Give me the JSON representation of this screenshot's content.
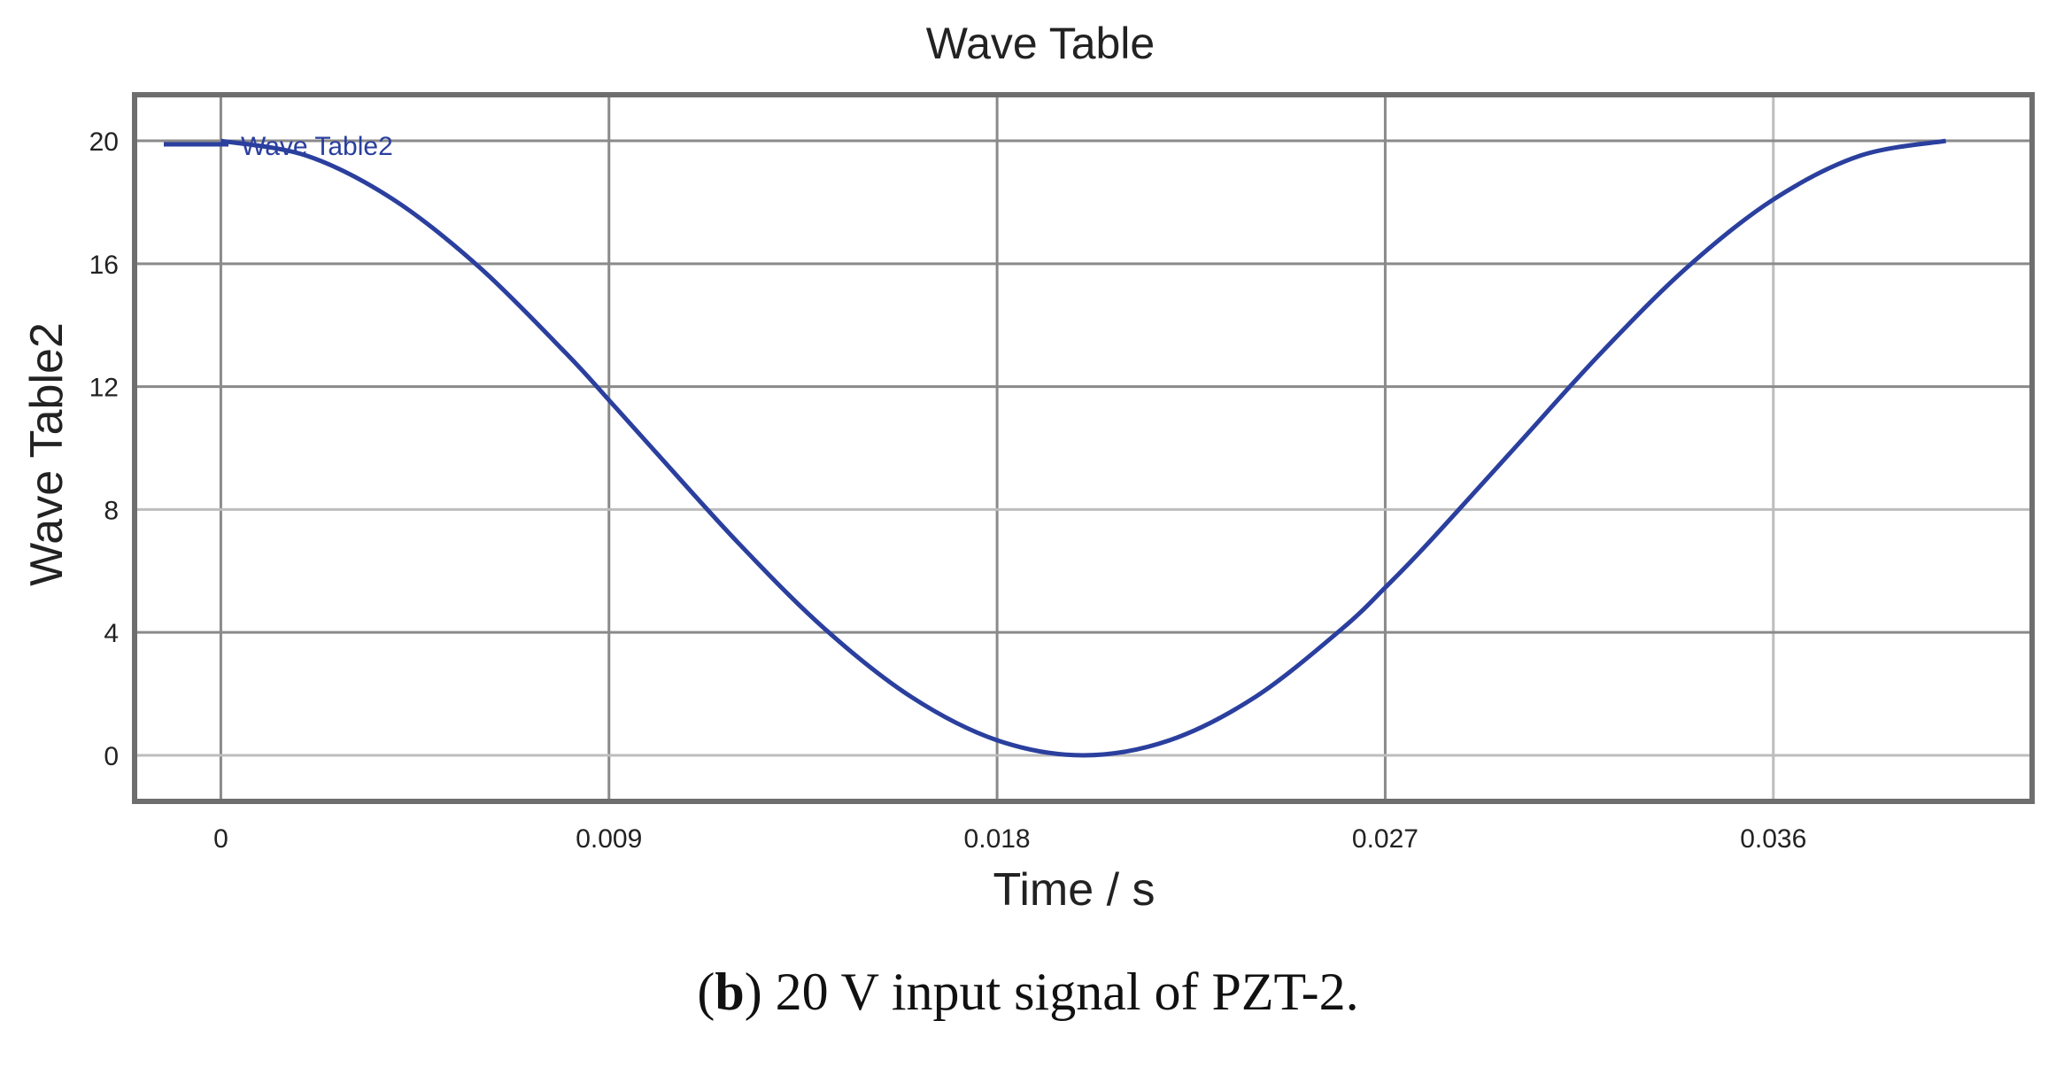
{
  "chart_data": {
    "type": "line",
    "title": "Wave Table",
    "xlabel": "Time / s",
    "ylabel": "Wave Table2",
    "xlim": [
      -0.002,
      0.042
    ],
    "ylim": [
      -1.5,
      21.5
    ],
    "x_ticks": [
      "0",
      "0.009",
      "0.018",
      "0.027",
      "0.036"
    ],
    "x_tick_values": [
      0,
      0.009,
      0.018,
      0.027,
      0.036
    ],
    "y_ticks": [
      "0",
      "4",
      "8",
      "12",
      "16",
      "20"
    ],
    "y_tick_values": [
      0,
      4,
      8,
      12,
      16,
      20
    ],
    "grid": true,
    "legend": {
      "position": "top-left",
      "entries": [
        "Wave Table2"
      ]
    },
    "series": [
      {
        "name": "Wave Table2",
        "color": "#2a3f9e",
        "x": [
          0,
          0.002,
          0.004,
          0.006,
          0.008,
          0.009,
          0.01,
          0.012,
          0.014,
          0.016,
          0.018,
          0.02,
          0.022,
          0.024,
          0.026,
          0.027,
          0.028,
          0.03,
          0.032,
          0.034,
          0.036,
          0.038,
          0.04
        ],
        "values": [
          20.0,
          19.51,
          18.09,
          15.88,
          13.09,
          11.56,
          10.0,
          6.91,
          4.12,
          1.91,
          0.49,
          0.0,
          0.49,
          1.91,
          4.12,
          5.46,
          6.91,
          10.0,
          13.09,
          15.88,
          18.09,
          19.51,
          20.0
        ]
      }
    ]
  },
  "caption": {
    "label": "b",
    "text": ") 20 V input signal of PZT-2.",
    "open_paren": "("
  }
}
